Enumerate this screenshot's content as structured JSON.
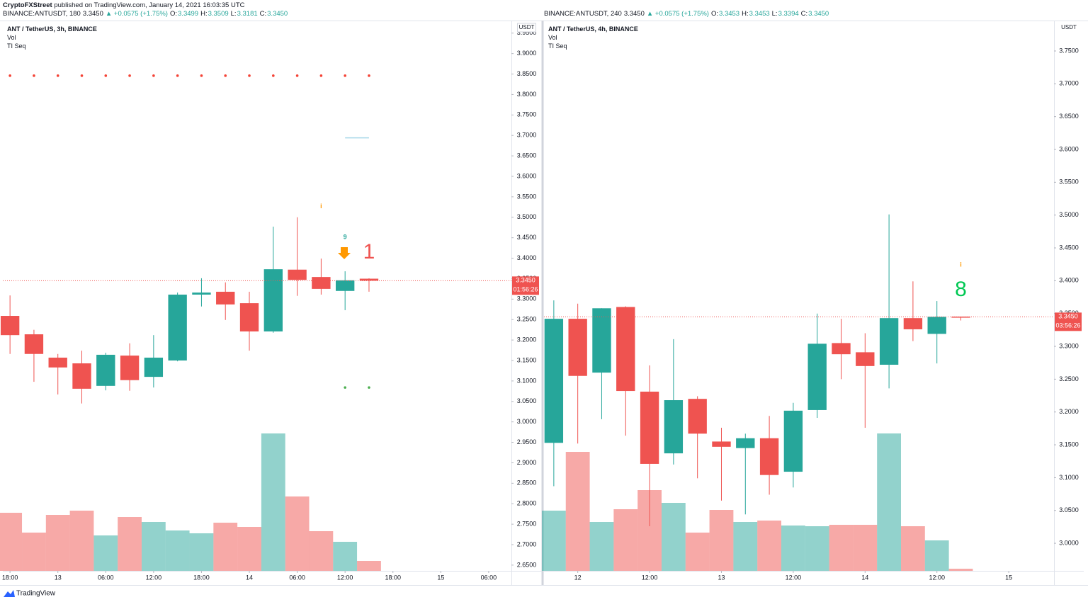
{
  "publisher": "CryptoFXStreet",
  "published": "published on TradingView.com, January 14, 2021 16:03:35 UTC",
  "brand": "TradingView",
  "chart_data": [
    {
      "type": "candlestick",
      "symbol": "BINANCE:ANTUSDT, 180",
      "price": "3.3450",
      "change": "▲ +0.0575 (+1.75%)",
      "ohlc": [
        {
          "label": "O:",
          "value": "3.3499"
        },
        {
          "label": "H:",
          "value": "3.3509"
        },
        {
          "label": "L:",
          "value": "3.3181"
        },
        {
          "label": "C:",
          "value": "3.3450"
        }
      ],
      "title": "ANT / TetherUS, 3h, BINANCE",
      "indicators": [
        "Vol",
        "TI Seq"
      ],
      "unit": "USDT",
      "up_color": "#26a69a",
      "down_color": "#ef5350",
      "ylim": [
        2.636,
        3.979
      ],
      "yticks": [
        {
          "value": 3.95,
          "label": "3.9500"
        },
        {
          "value": 3.9,
          "label": "3.9000"
        },
        {
          "value": 3.85,
          "label": "3.8500"
        },
        {
          "value": 3.8,
          "label": "3.8000"
        },
        {
          "value": 3.75,
          "label": "3.7500"
        },
        {
          "value": 3.7,
          "label": "3.7000"
        },
        {
          "value": 3.65,
          "label": "3.6500"
        },
        {
          "value": 3.6,
          "label": "3.6000"
        },
        {
          "value": 3.55,
          "label": "3.5500"
        },
        {
          "value": 3.5,
          "label": "3.5000"
        },
        {
          "value": 3.45,
          "label": "3.4500"
        },
        {
          "value": 3.4,
          "label": "3.4000"
        },
        {
          "value": 3.35,
          "label": "3.3500"
        },
        {
          "value": 3.3,
          "label": "3.3000"
        },
        {
          "value": 3.25,
          "label": "3.2500"
        },
        {
          "value": 3.2,
          "label": "3.2000"
        },
        {
          "value": 3.15,
          "label": "3.1500"
        },
        {
          "value": 3.1,
          "label": "3.1000"
        },
        {
          "value": 3.05,
          "label": "3.0500"
        },
        {
          "value": 3.0,
          "label": "3.0000"
        },
        {
          "value": 2.95,
          "label": "2.9500"
        },
        {
          "value": 2.9,
          "label": "2.9000"
        },
        {
          "value": 2.85,
          "label": "2.8500"
        },
        {
          "value": 2.8,
          "label": "2.8000"
        },
        {
          "value": 2.75,
          "label": "2.7500"
        },
        {
          "value": 2.7,
          "label": "2.7000"
        },
        {
          "value": 2.65,
          "label": "2.6500"
        }
      ],
      "xlim": [
        -0.3,
        20.95
      ],
      "xticks": [
        {
          "value": 0,
          "label": "18:00"
        },
        {
          "value": 2,
          "label": "13"
        },
        {
          "value": 4,
          "label": "06:00"
        },
        {
          "value": 6,
          "label": "12:00"
        },
        {
          "value": 8,
          "label": "18:00"
        },
        {
          "value": 10,
          "label": "14"
        },
        {
          "value": 12,
          "label": "06:00"
        },
        {
          "value": 14,
          "label": "12:00"
        },
        {
          "value": 16,
          "label": "18:00"
        },
        {
          "value": 18,
          "label": "15"
        },
        {
          "value": 20,
          "label": "06:00"
        }
      ],
      "open": [
        3.259,
        3.214,
        3.157,
        3.143,
        3.088,
        3.162,
        3.11,
        3.15,
        3.311,
        3.318,
        3.29,
        3.221,
        3.372,
        3.354,
        3.32,
        3.3499
      ],
      "high": [
        3.309,
        3.225,
        3.166,
        3.174,
        3.169,
        3.192,
        3.212,
        3.316,
        3.351,
        3.341,
        3.318,
        3.477,
        3.5,
        3.399,
        3.368,
        3.3509
      ],
      "low": [
        3.166,
        3.098,
        3.067,
        3.045,
        3.077,
        3.076,
        3.084,
        3.148,
        3.282,
        3.249,
        3.174,
        3.218,
        3.308,
        3.311,
        3.273,
        3.3181
      ],
      "close": [
        3.212,
        3.166,
        3.133,
        3.081,
        3.164,
        3.102,
        3.157,
        3.311,
        3.316,
        3.287,
        3.221,
        3.373,
        3.347,
        3.325,
        3.346,
        3.345
      ],
      "volume": [
        82,
        54,
        79,
        85,
        50,
        76,
        69,
        57,
        53,
        68,
        62,
        194,
        105,
        56,
        41,
        14
      ],
      "vlim": [
        0,
        776
      ],
      "last_price": {
        "value": 3.345,
        "label": "3.3450"
      },
      "countdown": "01:56:26",
      "dots": [
        {
          "value": 3.846,
          "color": "#f44336",
          "x": [
            0,
            1,
            2,
            3,
            4,
            5,
            6,
            7,
            8,
            9,
            10,
            11,
            12,
            13,
            14,
            15
          ]
        },
        {
          "value": 3.084,
          "color": "#4caf50",
          "x": [
            14,
            15
          ]
        }
      ],
      "levels": [
        {
          "value": 3.694,
          "color": "#a8d8ea",
          "x": [
            14,
            15
          ]
        }
      ],
      "signal_labels": [
        {
          "text": "9",
          "x": 14,
          "y": 3.451,
          "color": "#26a69a"
        },
        {
          "text": "i",
          "x": 13,
          "y": 3.526,
          "color": "#ff9800"
        }
      ],
      "count_labels": [
        {
          "text": "1",
          "x": 15,
          "y": 3.413,
          "color": "#ef5350"
        }
      ]
    },
    {
      "type": "candlestick",
      "symbol": "BINANCE:ANTUSDT, 240",
      "price": "3.3450",
      "change": "▲ +0.0575 (+1.75%)",
      "ohlc": [
        {
          "label": "O:",
          "value": "3.3453"
        },
        {
          "label": "H:",
          "value": "3.3453"
        },
        {
          "label": "L:",
          "value": "3.3394"
        },
        {
          "label": "C:",
          "value": "3.3450"
        }
      ],
      "title": "ANT / TetherUS, 4h, BINANCE",
      "indicators": [
        "Vol",
        "TI Seq"
      ],
      "unit": "USDT",
      "up_color": "#26a69a",
      "down_color": "#ef5350",
      "ylim": [
        2.958,
        3.7953
      ],
      "yticks": [
        {
          "value": 3.75,
          "label": "3.7500"
        },
        {
          "value": 3.7,
          "label": "3.7000"
        },
        {
          "value": 3.65,
          "label": "3.6500"
        },
        {
          "value": 3.6,
          "label": "3.6000"
        },
        {
          "value": 3.55,
          "label": "3.5500"
        },
        {
          "value": 3.5,
          "label": "3.5000"
        },
        {
          "value": 3.45,
          "label": "3.4500"
        },
        {
          "value": 3.4,
          "label": "3.4000"
        },
        {
          "value": 3.35,
          "label": "3.3500"
        },
        {
          "value": 3.3,
          "label": "3.3000"
        },
        {
          "value": 3.25,
          "label": "3.2500"
        },
        {
          "value": 3.2,
          "label": "3.2000"
        },
        {
          "value": 3.15,
          "label": "3.1500"
        },
        {
          "value": 3.1,
          "label": "3.1000"
        },
        {
          "value": 3.05,
          "label": "3.0500"
        },
        {
          "value": 3.0,
          "label": "3.0000"
        }
      ],
      "xlim": [
        -0.41,
        20.89
      ],
      "xticks": [
        {
          "value": 1,
          "label": "12"
        },
        {
          "value": 4,
          "label": "12:00"
        },
        {
          "value": 7,
          "label": "13"
        },
        {
          "value": 10,
          "label": "12:00"
        },
        {
          "value": 13,
          "label": "14"
        },
        {
          "value": 16,
          "label": "12:00"
        },
        {
          "value": 19,
          "label": "15"
        }
      ],
      "open": [
        3.153,
        3.342,
        3.26,
        3.36,
        3.231,
        3.137,
        3.22,
        3.155,
        3.145,
        3.16,
        3.109,
        3.203,
        3.305,
        3.291,
        3.272,
        3.343,
        3.319,
        3.3453
      ],
      "high": [
        3.37,
        3.365,
        3.358,
        3.361,
        3.271,
        3.311,
        3.224,
        3.176,
        3.167,
        3.194,
        3.214,
        3.35,
        3.342,
        3.32,
        3.501,
        3.399,
        3.369,
        3.3453
      ],
      "low": [
        3.087,
        3.152,
        3.189,
        3.164,
        3.026,
        3.12,
        3.099,
        3.065,
        3.044,
        3.074,
        3.085,
        3.191,
        3.25,
        3.176,
        3.236,
        3.308,
        3.274,
        3.3394
      ],
      "close": [
        3.342,
        3.255,
        3.358,
        3.232,
        3.121,
        3.218,
        3.167,
        3.147,
        3.16,
        3.104,
        3.202,
        3.304,
        3.288,
        3.27,
        3.343,
        3.326,
        3.345,
        3.345
      ],
      "volume": [
        85,
        168,
        69,
        87,
        114,
        96,
        54,
        86,
        69,
        71,
        64,
        63,
        65,
        65,
        194,
        63,
        43,
        3
      ],
      "vlim": [
        0,
        776
      ],
      "last_price": {
        "value": 3.345,
        "label": "3.3450"
      },
      "countdown": "03:56:26",
      "dots": [],
      "levels": [],
      "signal_labels": [
        {
          "text": "i",
          "x": 17,
          "y": 3.424,
          "color": "#ff9800"
        }
      ],
      "count_labels": [
        {
          "text": "8",
          "x": 17,
          "y": 3.385,
          "color": "#00c853"
        }
      ]
    }
  ]
}
